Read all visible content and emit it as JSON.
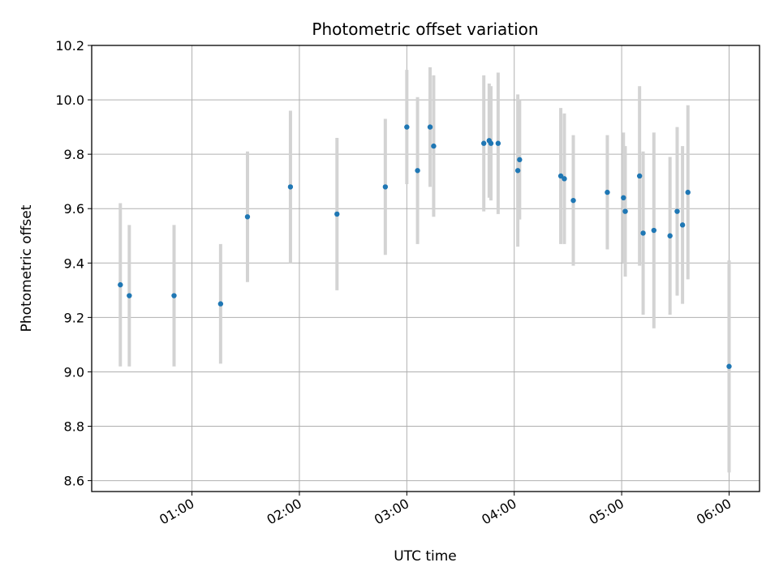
{
  "chart_data": {
    "type": "scatter",
    "title": "Photometric offset variation",
    "xlabel": "UTC time",
    "ylabel": "Photometric offset",
    "x_unit": "time of day (HH:MM)",
    "xlim": [
      "00:04",
      "06:17"
    ],
    "ylim": [
      8.56,
      10.2
    ],
    "grid": true,
    "x_ticks": [
      "01:00",
      "02:00",
      "03:00",
      "04:00",
      "05:00",
      "06:00"
    ],
    "y_ticks": [
      "8.6",
      "8.8",
      "9.0",
      "9.2",
      "9.4",
      "9.6",
      "9.8",
      "10.0",
      "10.2"
    ],
    "y_tick_values": [
      8.6,
      8.8,
      9.0,
      9.2,
      9.4,
      9.6,
      9.8,
      10.0,
      10.2
    ],
    "series": [
      {
        "marker_color": "#1f77b4",
        "errorbar_color": "#d3d3d3",
        "points": [
          {
            "x": "00:20",
            "y": 9.32,
            "yerr": 0.3
          },
          {
            "x": "00:25",
            "y": 9.28,
            "yerr": 0.26
          },
          {
            "x": "00:50",
            "y": 9.28,
            "yerr": 0.26
          },
          {
            "x": "01:16",
            "y": 9.25,
            "yerr": 0.22
          },
          {
            "x": "01:31",
            "y": 9.57,
            "yerr": 0.24
          },
          {
            "x": "01:55",
            "y": 9.68,
            "yerr": 0.28
          },
          {
            "x": "02:21",
            "y": 9.58,
            "yerr": 0.28
          },
          {
            "x": "02:48",
            "y": 9.68,
            "yerr": 0.25
          },
          {
            "x": "03:00",
            "y": 9.9,
            "yerr": 0.21
          },
          {
            "x": "03:06",
            "y": 9.74,
            "yerr": 0.27
          },
          {
            "x": "03:13",
            "y": 9.9,
            "yerr": 0.22
          },
          {
            "x": "03:15",
            "y": 9.83,
            "yerr": 0.26
          },
          {
            "x": "03:43",
            "y": 9.84,
            "yerr": 0.25
          },
          {
            "x": "03:46",
            "y": 9.85,
            "yerr": 0.21
          },
          {
            "x": "03:47",
            "y": 9.84,
            "yerr": 0.21
          },
          {
            "x": "03:51",
            "y": 9.84,
            "yerr": 0.26
          },
          {
            "x": "04:02",
            "y": 9.74,
            "yerr": 0.28
          },
          {
            "x": "04:03",
            "y": 9.78,
            "yerr": 0.22
          },
          {
            "x": "04:26",
            "y": 9.72,
            "yerr": 0.25
          },
          {
            "x": "04:28",
            "y": 9.71,
            "yerr": 0.24
          },
          {
            "x": "04:33",
            "y": 9.63,
            "yerr": 0.24
          },
          {
            "x": "04:52",
            "y": 9.66,
            "yerr": 0.21
          },
          {
            "x": "05:01",
            "y": 9.64,
            "yerr": 0.24
          },
          {
            "x": "05:02",
            "y": 9.59,
            "yerr": 0.24
          },
          {
            "x": "05:10",
            "y": 9.72,
            "yerr": 0.33
          },
          {
            "x": "05:12",
            "y": 9.51,
            "yerr": 0.3
          },
          {
            "x": "05:18",
            "y": 9.52,
            "yerr": 0.36
          },
          {
            "x": "05:27",
            "y": 9.5,
            "yerr": 0.29
          },
          {
            "x": "05:31",
            "y": 9.59,
            "yerr": 0.31
          },
          {
            "x": "05:34",
            "y": 9.54,
            "yerr": 0.29
          },
          {
            "x": "05:37",
            "y": 9.66,
            "yerr": 0.32
          },
          {
            "x": "06:00",
            "y": 9.02,
            "yerr": 0.39
          }
        ]
      }
    ]
  }
}
